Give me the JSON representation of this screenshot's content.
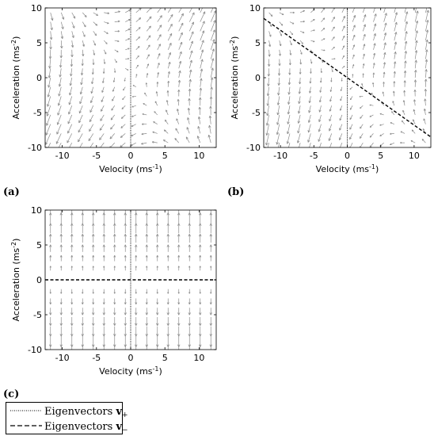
{
  "chart_data": [
    {
      "type": "quiver",
      "panel_label": "(a)",
      "xlabel": "Velocity (ms",
      "xlabel_sup": "-1",
      "xlabel_end": ")",
      "ylabel": "Acceleration (ms",
      "ylabel_sup": "-2",
      "ylabel_end": ")",
      "xlim": [
        -12.5,
        12.5
      ],
      "ylim": [
        -10,
        10
      ],
      "xticks": [
        -10,
        -5,
        0,
        5,
        10
      ],
      "yticks": [
        -10,
        -5,
        0,
        5,
        10
      ],
      "field": {
        "a11": 0.2,
        "a12": 0.5,
        "a21": 1,
        "a22": 0.35
      },
      "eigen_dotted": {
        "slope": "vertical"
      },
      "eigen_dashed": null
    },
    {
      "type": "quiver",
      "panel_label": "(b)",
      "xlabel": "Velocity (ms",
      "xlabel_sup": "-1",
      "xlabel_end": ")",
      "ylabel": "Acceleration (ms",
      "ylabel_sup": "-2",
      "ylabel_end": ")",
      "xlim": [
        -12.5,
        12.5
      ],
      "ylim": [
        -10,
        10
      ],
      "xticks": [
        -10,
        -5,
        0,
        5,
        10
      ],
      "yticks": [
        -10,
        -5,
        0,
        5,
        10
      ],
      "field": {
        "a11": 0.05,
        "a12": 0.25,
        "a21": 0.6,
        "a22": 0.55
      },
      "eigen_dotted": {
        "slope": "vertical"
      },
      "eigen_dashed": {
        "slope": -0.68
      }
    },
    {
      "type": "quiver",
      "panel_label": "(c)",
      "xlabel": "Velocity (ms",
      "xlabel_sup": "-1",
      "xlabel_end": ")",
      "ylabel": "Acceleration (ms",
      "ylabel_sup": "-2",
      "ylabel_end": ")",
      "xlim": [
        -12.5,
        12.5
      ],
      "ylim": [
        -10,
        10
      ],
      "xticks": [
        -10,
        -5,
        0,
        5,
        10
      ],
      "yticks": [
        -10,
        -5,
        0,
        5,
        10
      ],
      "field": {
        "a11": 0,
        "a12": 0,
        "a21": 0,
        "a22": 1
      },
      "eigen_dotted": {
        "slope": "vertical"
      },
      "eigen_dashed": {
        "slope": 0
      }
    }
  ],
  "legend": {
    "dotted_label": "Eigenvectors ",
    "dotted_symbol": "v",
    "dotted_sub": "+",
    "dashed_label": "Eigenvectors ",
    "dashed_symbol": "v",
    "dashed_sub": "−"
  },
  "colors": {
    "arrow": "#8a8a8a",
    "line": "#000000"
  }
}
